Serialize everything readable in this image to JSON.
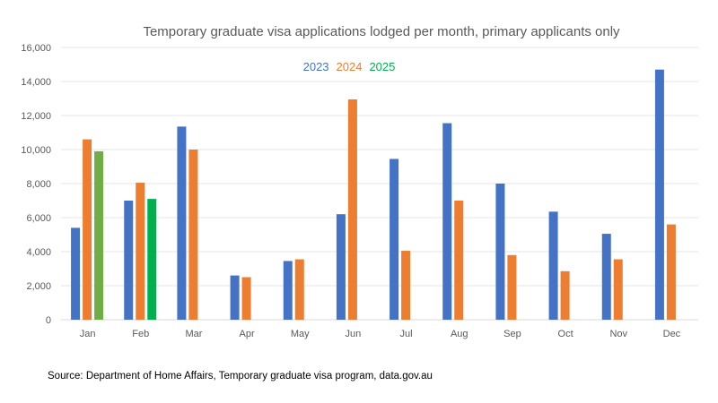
{
  "chart_data": {
    "type": "bar",
    "title": "Temporary graduate visa applications lodged per month, primary applicants only",
    "xlabel": "",
    "ylabel": "",
    "ylim": [
      0,
      16000
    ],
    "yticks": [
      0,
      2000,
      4000,
      6000,
      8000,
      10000,
      12000,
      14000,
      16000
    ],
    "ytick_labels": [
      "0",
      "2,000",
      "4,000",
      "6,000",
      "8,000",
      "10,000",
      "12,000",
      "14,000",
      "16,000"
    ],
    "categories": [
      "Jan",
      "Feb",
      "Mar",
      "Apr",
      "May",
      "Jun",
      "Jul",
      "Aug",
      "Sep",
      "Oct",
      "Nov",
      "Dec"
    ],
    "legend_position": "top-center",
    "grid": true,
    "series": [
      {
        "name": "2023",
        "color": "#4472C4",
        "values": [
          5400,
          7000,
          11350,
          2600,
          3450,
          6200,
          9450,
          11550,
          8000,
          6350,
          5050,
          14700
        ]
      },
      {
        "name": "2024",
        "color": "#ED7D31",
        "values": [
          10600,
          8050,
          10000,
          2500,
          3550,
          12950,
          4050,
          7000,
          3800,
          2850,
          3550,
          5600
        ]
      },
      {
        "name": "2025",
        "color": "#00B050",
        "bar_colors": [
          "#70AD47",
          "#00B050",
          null,
          null,
          null,
          null,
          null,
          null,
          null,
          null,
          null,
          null
        ],
        "values": [
          9900,
          7100,
          null,
          null,
          null,
          null,
          null,
          null,
          null,
          null,
          null,
          null
        ]
      }
    ]
  },
  "source_text": "Source: Department of Home Affairs, Temporary graduate visa program, data.gov.au"
}
